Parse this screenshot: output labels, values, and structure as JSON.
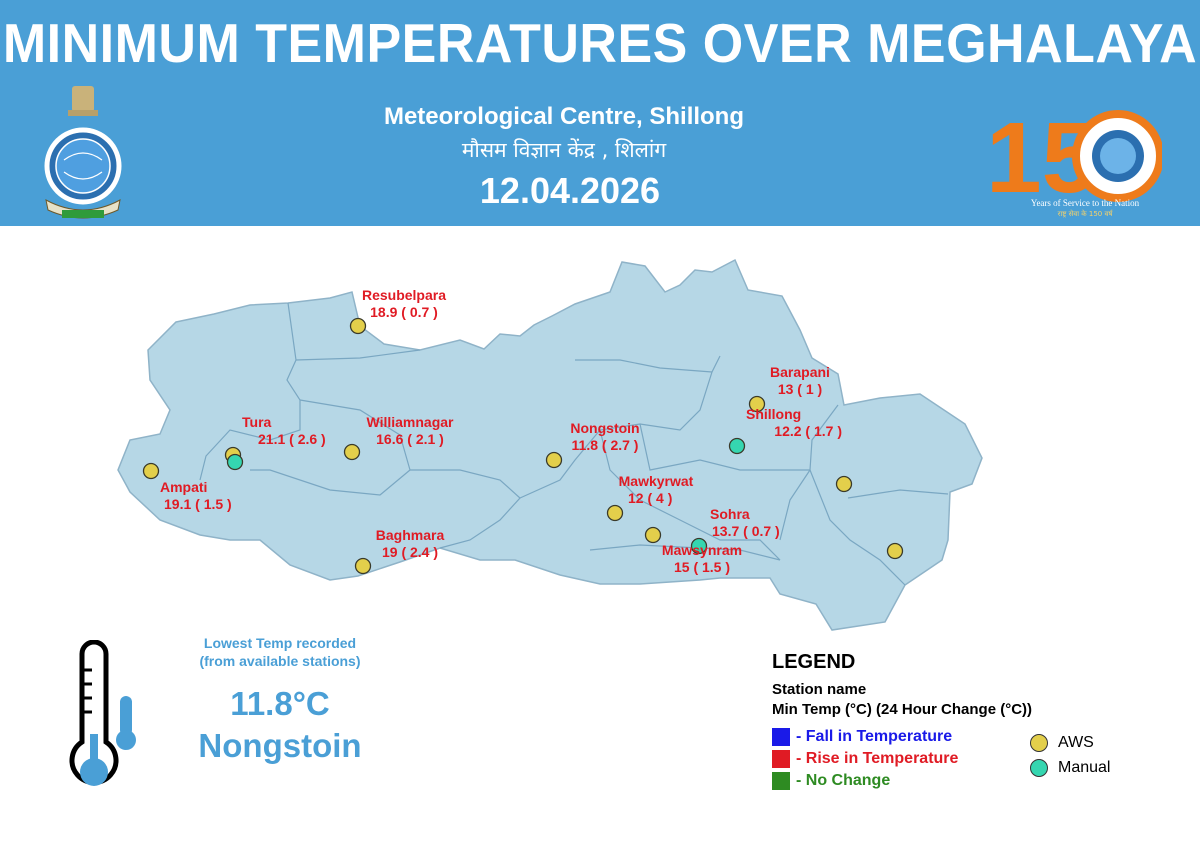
{
  "header": {
    "title": "MINIMUM TEMPERATURES OVER MEGHALAYA",
    "centre": "Meteorological Centre, Shillong",
    "centre_hindi": "मौसम विज्ञान केंद्र , शिलांग",
    "date": "12.04.2026",
    "anniversary_number": "150",
    "anniversary_caption": "Years of Service to the Nation",
    "anniversary_caption_hindi": "राष्ट्र सेवा के 150 वर्ष"
  },
  "colors": {
    "header_bg": "#4a9fd6",
    "map_fill": "#b6d7e6",
    "district_border": "#7aa7c2",
    "rise": "#e01b24",
    "fall": "#1a1ae8",
    "no_change": "#2e8b22",
    "aws": "#e3cf4b",
    "manual": "#35d6b0"
  },
  "stations": [
    {
      "name": "Resubelpara",
      "value": "18.9 ( 0.7 )"
    },
    {
      "name": "Tura",
      "value": "21.1 ( 2.6 )"
    },
    {
      "name": "Williamnagar",
      "value": "16.6 ( 2.1 )"
    },
    {
      "name": "Ampati",
      "value": "19.1 ( 1.5 )"
    },
    {
      "name": "Baghmara",
      "value": "19 ( 2.4 )"
    },
    {
      "name": "Nongstoin",
      "value": "11.8 ( 2.7 )"
    },
    {
      "name": "Barapani",
      "value": "13 ( 1 )"
    },
    {
      "name": "Shillong",
      "value": "12.2 ( 1.7 )"
    },
    {
      "name": "Mawkyrwat",
      "value": "12 ( 4 )"
    },
    {
      "name": "Sohra",
      "value": "13.7 ( 0.7 )"
    },
    {
      "name": "Mawsynram",
      "value": "15 ( 1.5 )"
    }
  ],
  "lowest": {
    "caption_line1": "Lowest Temp recorded",
    "caption_line2": "(from available stations)",
    "value": "11.8°C",
    "station": "Nongstoin"
  },
  "legend": {
    "title": "LEGEND",
    "line1": "Station name",
    "line2": "Min Temp (°C) (24 Hour Change (°C))",
    "fall": "- Fall in Temperature",
    "rise": "- Rise in Temperature",
    "no_change": "- No Change",
    "aws": "AWS",
    "manual": "Manual"
  }
}
